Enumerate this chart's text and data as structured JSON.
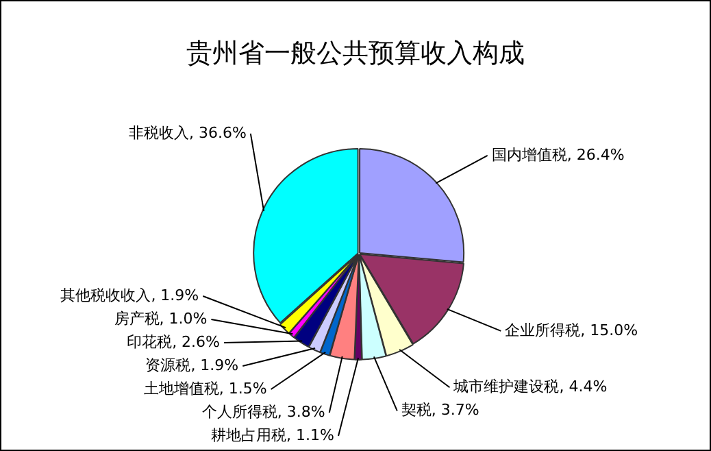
{
  "chart_data": {
    "type": "pie",
    "title": "贵州省一般公共预算收入构成",
    "categories": [
      "国内增值税",
      "企业所得税",
      "城市维护建设税",
      "契税",
      "耕地占用税",
      "个人所得税",
      "土地增值税",
      "资源税",
      "印花税",
      "房产税",
      "其他税收收入",
      "非税收入"
    ],
    "values": [
      26.4,
      15.0,
      4.4,
      3.7,
      1.1,
      3.8,
      1.5,
      1.9,
      2.6,
      1.0,
      1.9,
      36.6
    ],
    "colors": [
      "#a0a0ff",
      "#993366",
      "#ffffcc",
      "#ccffff",
      "#660066",
      "#ff8080",
      "#0066cc",
      "#ccccff",
      "#000080",
      "#ff00ff",
      "#ffff00",
      "#00ffff"
    ],
    "value_labels": [
      "26.4%",
      "15.0%",
      "4.4%",
      "3.7%",
      "1.1%",
      "3.8%",
      "1.5%",
      "1.9%",
      "2.6%",
      "1.0%",
      "1.9%",
      "36.6%"
    ],
    "legend": false
  }
}
